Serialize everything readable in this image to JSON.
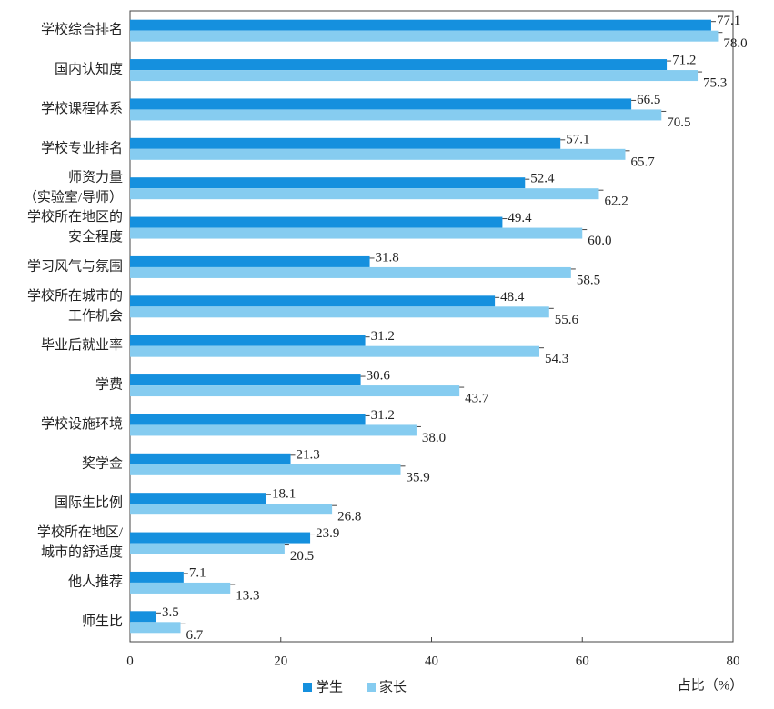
{
  "chart_data": {
    "type": "hbar",
    "x_label": "占比（%）",
    "categories": [
      [
        "学校综合排名"
      ],
      [
        "国内认知度"
      ],
      [
        "学校课程体系"
      ],
      [
        "学校专业排名"
      ],
      [
        "师资力量",
        "（实验室/导师）"
      ],
      [
        "学校所在地区的",
        "安全程度"
      ],
      [
        "学习风气与氛围"
      ],
      [
        "学校所在城市的",
        "工作机会"
      ],
      [
        "毕业后就业率"
      ],
      [
        "学费"
      ],
      [
        "学校设施环境"
      ],
      [
        "奖学金"
      ],
      [
        "国际生比例"
      ],
      [
        "学校所在地区/",
        "城市的舒适度"
      ],
      [
        "他人推荐"
      ],
      [
        "师生比"
      ]
    ],
    "series": [
      {
        "name": "学生",
        "color": "#1590de",
        "values": [
          77.1,
          71.2,
          66.5,
          57.1,
          52.4,
          49.4,
          31.8,
          48.4,
          31.2,
          30.6,
          31.2,
          21.3,
          18.1,
          23.9,
          7.1,
          3.5
        ],
        "value_labels": [
          "77.1",
          "71.2",
          "66.5",
          "57.1",
          "52.4",
          "49.4",
          "31.8",
          "48.4",
          "31.2",
          "30.6",
          "31.2",
          "21.3",
          "18.1",
          "23.9",
          "7.1",
          "3.5"
        ]
      },
      {
        "name": "家长",
        "color": "#86ccf0",
        "values": [
          78.0,
          75.3,
          70.5,
          65.7,
          62.2,
          60.0,
          58.5,
          55.6,
          54.3,
          43.7,
          38.0,
          35.9,
          26.8,
          20.5,
          13.3,
          6.7
        ],
        "value_labels": [
          "78.0",
          "75.3",
          "70.5",
          "65.7",
          "62.2",
          "60.0",
          "58.5",
          "55.6",
          "54.3",
          "43.7",
          "38.0",
          "35.9",
          "26.8",
          "20.5",
          "13.3",
          "6.7"
        ]
      }
    ],
    "xlim": [
      0,
      80
    ],
    "xticks": [
      0,
      20,
      40,
      60,
      80
    ]
  }
}
